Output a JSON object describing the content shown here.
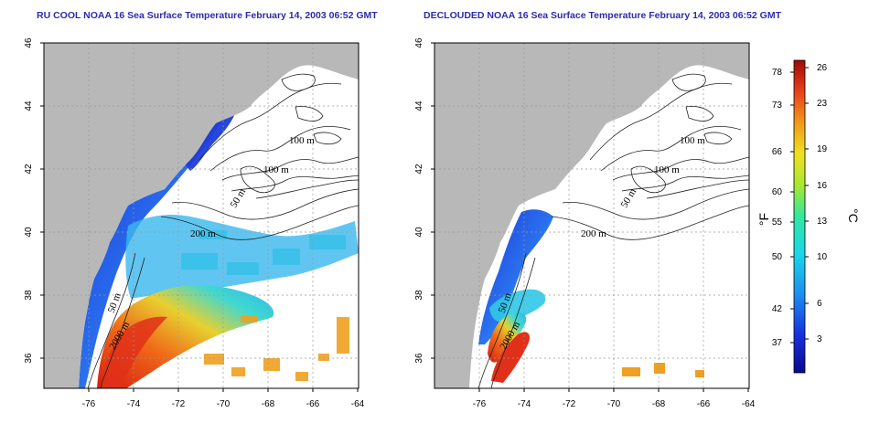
{
  "titles": {
    "left": "RU COOL NOAA 16 Sea Surface Temperature February 14, 2003 06:52 GMT",
    "right": "DECLOUDED NOAA 16 Sea Surface Temperature February 14, 2003 06:52 GMT"
  },
  "axes": {
    "lon_ticks": [
      "-76",
      "-74",
      "-72",
      "-70",
      "-68",
      "-66",
      "-64"
    ],
    "lat_ticks": [
      "46",
      "44",
      "42",
      "40",
      "38",
      "36"
    ]
  },
  "contour_labels": {
    "left": [
      "100 m",
      "100 m",
      "50 m",
      "200 m",
      "50 m",
      "2000 m"
    ],
    "right": [
      "100 m",
      "100 m",
      "50 m",
      "200 m",
      "50 m",
      "2000 m"
    ]
  },
  "colorbar": {
    "fahrenheit_unit": "°F",
    "celsius_unit": "°C",
    "fahrenheit_ticks": [
      "78",
      "73",
      "66",
      "60",
      "55",
      "50",
      "42",
      "37"
    ],
    "celsius_ticks": [
      "26",
      "23",
      "19",
      "16",
      "13",
      "10",
      "6",
      "3"
    ]
  },
  "colors": {
    "land": "#b8b8b8",
    "cold": "#1e3cd8",
    "warm": "#e52b12",
    "title": "#2b2bb0"
  }
}
